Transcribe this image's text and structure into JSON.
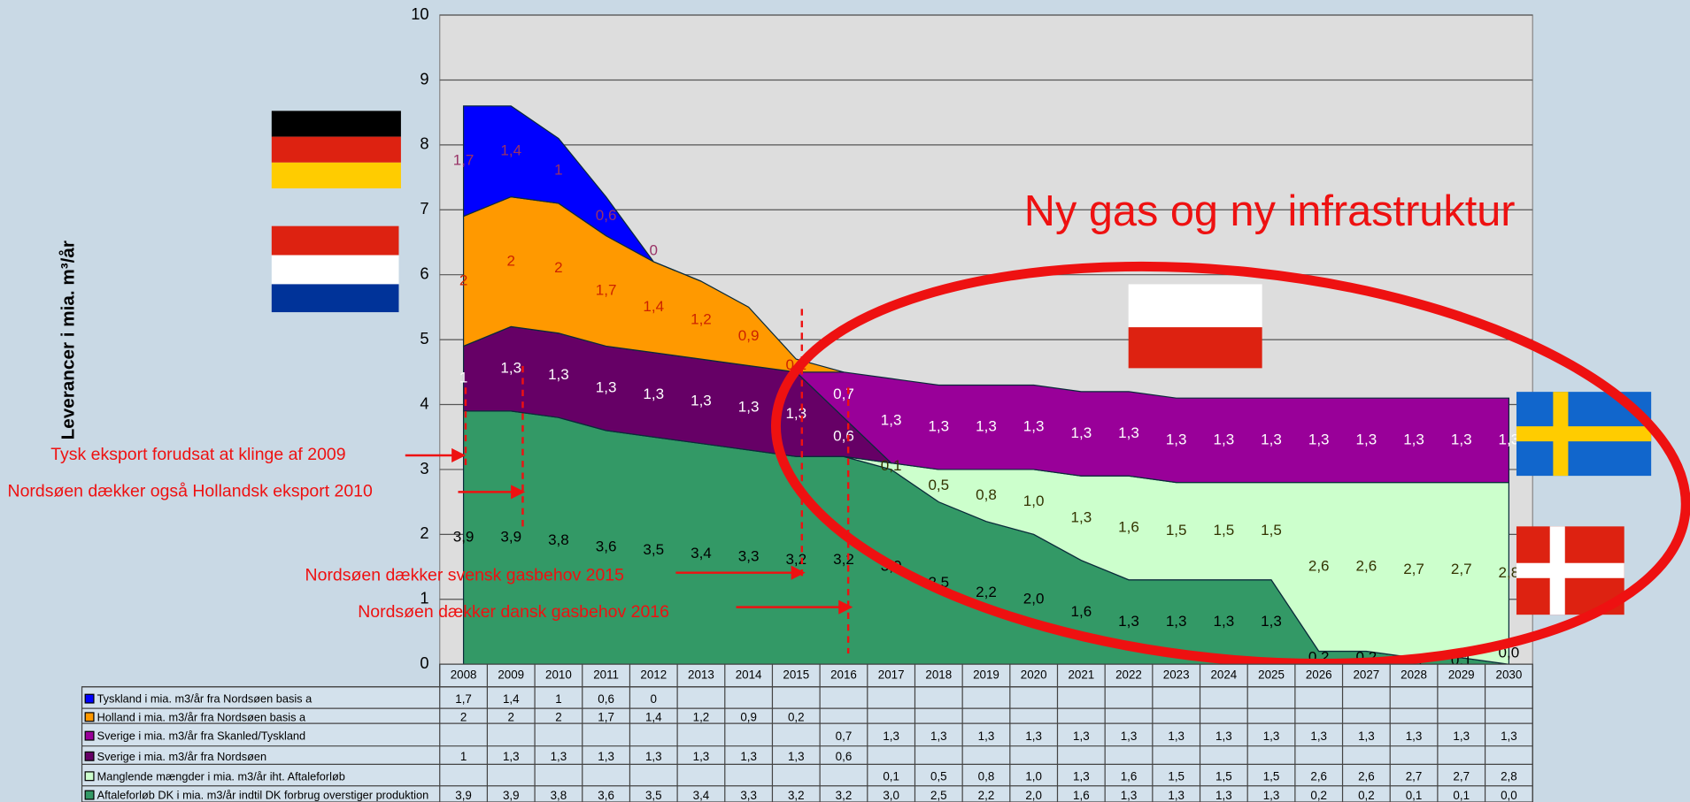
{
  "chart_data": {
    "type": "area",
    "y_label": "Leverancer i mia. m³/år",
    "headline": "Ny gas og ny infrastruktur",
    "annotations": [
      "Tysk eksport  forudsat at klinge af 2009",
      "Nordsøen dækker også Hollandsk eksport 2010",
      "Nordsøen dækker svensk gasbehov 2015",
      "Nordsøen dækker dansk gasbehov 2016"
    ],
    "categories": [
      "2008",
      "2009",
      "2010",
      "2011",
      "2012",
      "2013",
      "2014",
      "2015",
      "2016",
      "2017",
      "2018",
      "2019",
      "2020",
      "2021",
      "2022",
      "2023",
      "2024",
      "2025",
      "2026",
      "2027",
      "2028",
      "2029",
      "2030"
    ],
    "ylim": [
      0,
      10
    ],
    "yticks": [
      0,
      1,
      2,
      3,
      4,
      5,
      6,
      7,
      8,
      9,
      10
    ],
    "grid": true,
    "series": [
      {
        "name": "Tyskland i mia. m3/år fra Nordsøen basis a",
        "color": "#0000ff",
        "label_color": "#993366",
        "values": [
          1.7,
          1.4,
          1,
          0.6,
          0,
          null,
          null,
          null,
          null,
          null,
          null,
          null,
          null,
          null,
          null,
          null,
          null,
          null,
          null,
          null,
          null,
          null,
          null
        ],
        "value_labels": [
          "1,7",
          "1,4",
          "1",
          "0,6",
          "0",
          null,
          null,
          null,
          null,
          null,
          null,
          null,
          null,
          null,
          null,
          null,
          null,
          null,
          null,
          null,
          null,
          null,
          null
        ]
      },
      {
        "name": "Holland i mia. m3/år fra Nordsøen basis a",
        "color": "#ff9900",
        "label_color": "#cc2200",
        "values": [
          2,
          2,
          2,
          1.7,
          1.4,
          1.2,
          0.9,
          0.2,
          null,
          null,
          null,
          null,
          null,
          null,
          null,
          null,
          null,
          null,
          null,
          null,
          null,
          null,
          null
        ],
        "value_labels": [
          "2",
          "2",
          "2",
          "1,7",
          "1,4",
          "1,2",
          "0,9",
          "0,2",
          null,
          null,
          null,
          null,
          null,
          null,
          null,
          null,
          null,
          null,
          null,
          null,
          null,
          null,
          null
        ]
      },
      {
        "name": "Sverige i mia. m3/år fra Skanled/Tyskland",
        "color": "#990099",
        "label_color": "#ffffff",
        "values": [
          null,
          null,
          null,
          null,
          null,
          null,
          null,
          null,
          0.7,
          1.3,
          1.3,
          1.3,
          1.3,
          1.3,
          1.3,
          1.3,
          1.3,
          1.3,
          1.3,
          1.3,
          1.3,
          1.3,
          1.3
        ],
        "value_labels": [
          null,
          null,
          null,
          null,
          null,
          null,
          null,
          null,
          "0,7",
          "1,3",
          "1,3",
          "1,3",
          "1,3",
          "1,3",
          "1,3",
          "1,3",
          "1,3",
          "1,3",
          "1,3",
          "1,3",
          "1,3",
          "1,3",
          "1,3"
        ]
      },
      {
        "name": "Sverige i mia. m3/år fra Nordsøen",
        "color": "#660066",
        "label_color": "#ffffff",
        "values": [
          1,
          1.3,
          1.3,
          1.3,
          1.3,
          1.3,
          1.3,
          1.3,
          0.6,
          null,
          null,
          null,
          null,
          null,
          null,
          null,
          null,
          null,
          null,
          null,
          null,
          null,
          null
        ],
        "value_labels": [
          "1",
          "1,3",
          "1,3",
          "1,3",
          "1,3",
          "1,3",
          "1,3",
          "1,3",
          "0,6",
          null,
          null,
          null,
          null,
          null,
          null,
          null,
          null,
          null,
          null,
          null,
          null,
          null,
          null
        ]
      },
      {
        "name": "Manglende mængder i mia. m3/år iht. Aftaleforløb",
        "color": "#ccffcc",
        "label_color": "#333300",
        "values": [
          null,
          null,
          null,
          null,
          null,
          null,
          null,
          null,
          null,
          0.1,
          0.5,
          0.8,
          1.0,
          1.3,
          1.6,
          1.5,
          1.5,
          1.5,
          2.6,
          2.6,
          2.7,
          2.7,
          2.8
        ],
        "value_labels": [
          null,
          null,
          null,
          null,
          null,
          null,
          null,
          null,
          null,
          "0,1",
          "0,5",
          "0,8",
          "1,0",
          "1,3",
          "1,6",
          "1,5",
          "1,5",
          "1,5",
          "2,6",
          "2,6",
          "2,7",
          "2,7",
          "2,8"
        ]
      },
      {
        "name": "Aftaleforløb DK i mia. m3/år indtil DK forbrug overstiger produktion",
        "color": "#339966",
        "label_color": "#000000",
        "values": [
          3.9,
          3.9,
          3.8,
          3.6,
          3.5,
          3.4,
          3.3,
          3.2,
          3.2,
          3.0,
          2.5,
          2.2,
          2.0,
          1.6,
          1.3,
          1.3,
          1.3,
          1.3,
          0.2,
          0.2,
          0.1,
          0.1,
          0.0
        ],
        "value_labels": [
          "3,9",
          "3,9",
          "3,8",
          "3,6",
          "3,5",
          "3,4",
          "3,3",
          "3,2",
          "3,2",
          "3,0",
          "2,5",
          "2,2",
          "2,0",
          "1,6",
          "1,3",
          "1,3",
          "1,3",
          "1,3",
          "0,2",
          "0,2",
          "0,1",
          "0,1",
          "0,0"
        ]
      }
    ],
    "stack_order": [
      5,
      4,
      3,
      2,
      1,
      0
    ]
  }
}
